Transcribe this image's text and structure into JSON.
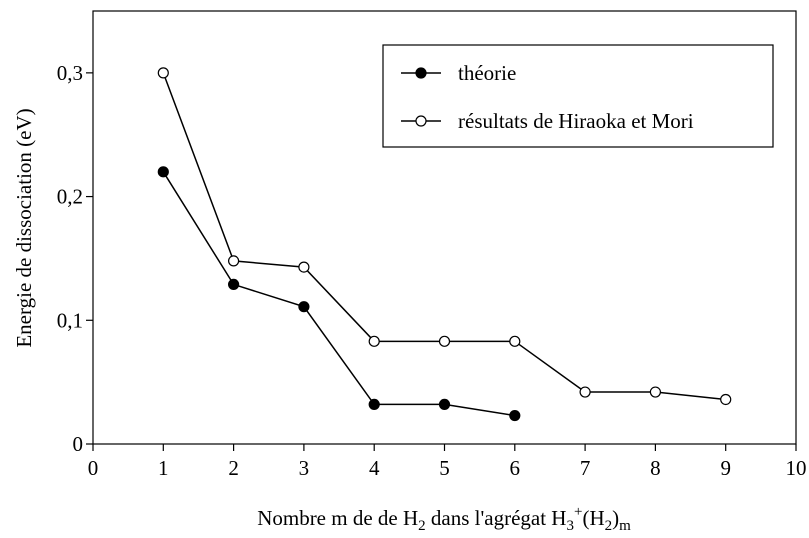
{
  "chart_data": {
    "type": "line",
    "ylabel": "Energie de dissociation (eV)",
    "xlabel": [
      "Nombre m de  de H",
      "2",
      " dans l'agrégat H",
      "3",
      "+",
      "(H",
      "2",
      ")",
      "m"
    ],
    "xlim": [
      0,
      10
    ],
    "xticks": [
      0,
      1,
      2,
      3,
      4,
      5,
      6,
      7,
      8,
      9,
      10
    ],
    "ylim": [
      0,
      0.35
    ],
    "yticks": [
      0,
      {
        "value": 0.1,
        "label": "0,1"
      },
      {
        "value": 0.2,
        "label": "0,2"
      },
      {
        "value": 0.3,
        "label": "0,3"
      }
    ],
    "legend": "upper right",
    "series": [
      {
        "name": "théorie",
        "color": "#000000",
        "marker": "filled",
        "x": [
          1,
          2,
          3,
          4,
          5,
          6
        ],
        "values": [
          0.22,
          0.129,
          0.111,
          0.032,
          0.032,
          0.023
        ]
      },
      {
        "name": "résultats de Hiraoka et Mori",
        "color": "#000000",
        "marker": "open",
        "x": [
          1,
          2,
          3,
          4,
          5,
          6,
          7,
          8,
          9
        ],
        "values": [
          0.3,
          0.148,
          0.143,
          0.083,
          0.083,
          0.083,
          0.042,
          0.042,
          0.036
        ]
      }
    ]
  }
}
